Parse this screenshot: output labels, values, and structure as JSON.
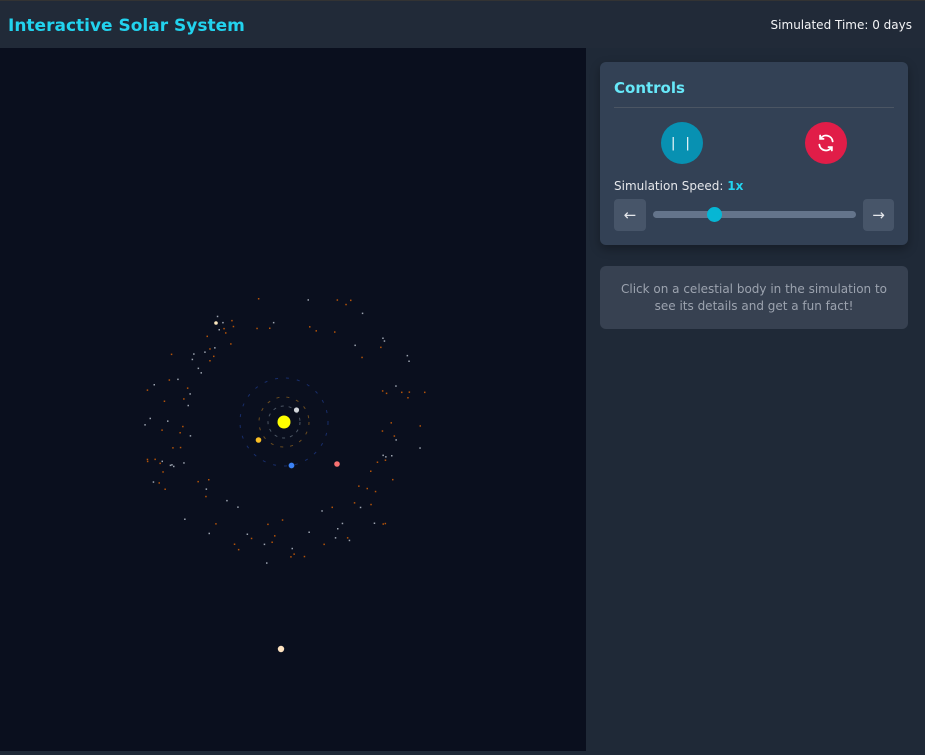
{
  "header": {
    "title": "Interactive Solar System",
    "simulated_time": "Simulated Time: 0 days"
  },
  "controls": {
    "title": "Controls",
    "pause_icon": "pause-icon",
    "reset_icon": "refresh-icon",
    "speed_label": "Simulation Speed: ",
    "speed_value": "1x",
    "speed_slider_fraction": 0.3,
    "decrease_icon": "arrow-left-icon",
    "increase_icon": "arrow-right-icon"
  },
  "info": {
    "text": "Click on a celestial body in the simulation to see its details and get a fun fact!"
  },
  "colors": {
    "accent": "#22d3ee",
    "pause": "#0891b2",
    "reset": "#e11d48",
    "sun": "#ffff00",
    "mercury": "#d1d5db",
    "venus": "#fbbf24",
    "earth": "#3b82f6",
    "mars": "#f87171"
  }
}
